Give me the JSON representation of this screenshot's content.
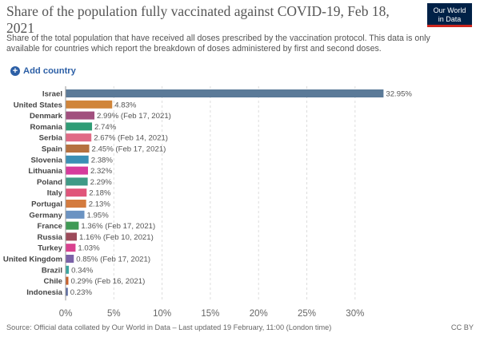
{
  "header": {
    "title": "Share of the population fully vaccinated against COVID-19, Feb 18, 2021",
    "subtitle": "Share of the total population that have received all doses prescribed by the vaccination protocol. This data is only available for countries which report the breakdown of doses administered by first and second doses.",
    "logo_line1": "Our World",
    "logo_line2": "in Data",
    "logo_bg": "#002147",
    "logo_accent": "#ce261e"
  },
  "controls": {
    "add_country_label": "Add country",
    "add_icon": "plus-circle-icon",
    "accent": "#2c5fa6"
  },
  "chart_data": {
    "type": "bar",
    "orientation": "horizontal",
    "xlim": [
      0,
      33
    ],
    "x_ticks": [
      "0%",
      "5%",
      "10%",
      "15%",
      "20%",
      "25%",
      "30%"
    ],
    "x_tick_values": [
      0,
      5,
      10,
      15,
      20,
      25,
      30
    ],
    "grid": true,
    "grid_style": "dashed",
    "categories": [
      "Israel",
      "United States",
      "Denmark",
      "Romania",
      "Serbia",
      "Spain",
      "Slovenia",
      "Lithuania",
      "Poland",
      "Italy",
      "Portugal",
      "Germany",
      "France",
      "Russia",
      "Turkey",
      "United Kingdom",
      "Brazil",
      "Chile",
      "Indonesia"
    ],
    "values": [
      32.95,
      4.83,
      2.99,
      2.74,
      2.67,
      2.45,
      2.38,
      2.32,
      2.29,
      2.18,
      2.13,
      1.95,
      1.36,
      1.16,
      1.03,
      0.85,
      0.34,
      0.29,
      0.23
    ],
    "labels": [
      "32.95%",
      "4.83%",
      "2.99% (Feb 17, 2021)",
      "2.74%",
      "2.67% (Feb 14, 2021)",
      "2.45% (Feb 17, 2021)",
      "2.38%",
      "2.32%",
      "2.29%",
      "2.18%",
      "2.13%",
      "1.95%",
      "1.36% (Feb 17, 2021)",
      "1.16% (Feb 10, 2021)",
      "1.03%",
      "0.85% (Feb 17, 2021)",
      "0.34%",
      "0.29% (Feb 16, 2021)",
      "0.23%"
    ],
    "colors": [
      "#5b7a98",
      "#d0853a",
      "#a14f7e",
      "#2f9c75",
      "#e06a85",
      "#b5713f",
      "#3a8fb5",
      "#d63b9c",
      "#3f9a86",
      "#e0557a",
      "#d47b3e",
      "#6b93c2",
      "#3f9a55",
      "#9c4a5a",
      "#d9418f",
      "#7b62a8",
      "#3aa6a0",
      "#c9602a",
      "#5a6aa0"
    ]
  },
  "footer": {
    "source": "Source: Official data collated by Our World in Data – Last updated 19 February, 11:00 (London time)",
    "license": "CC BY"
  }
}
